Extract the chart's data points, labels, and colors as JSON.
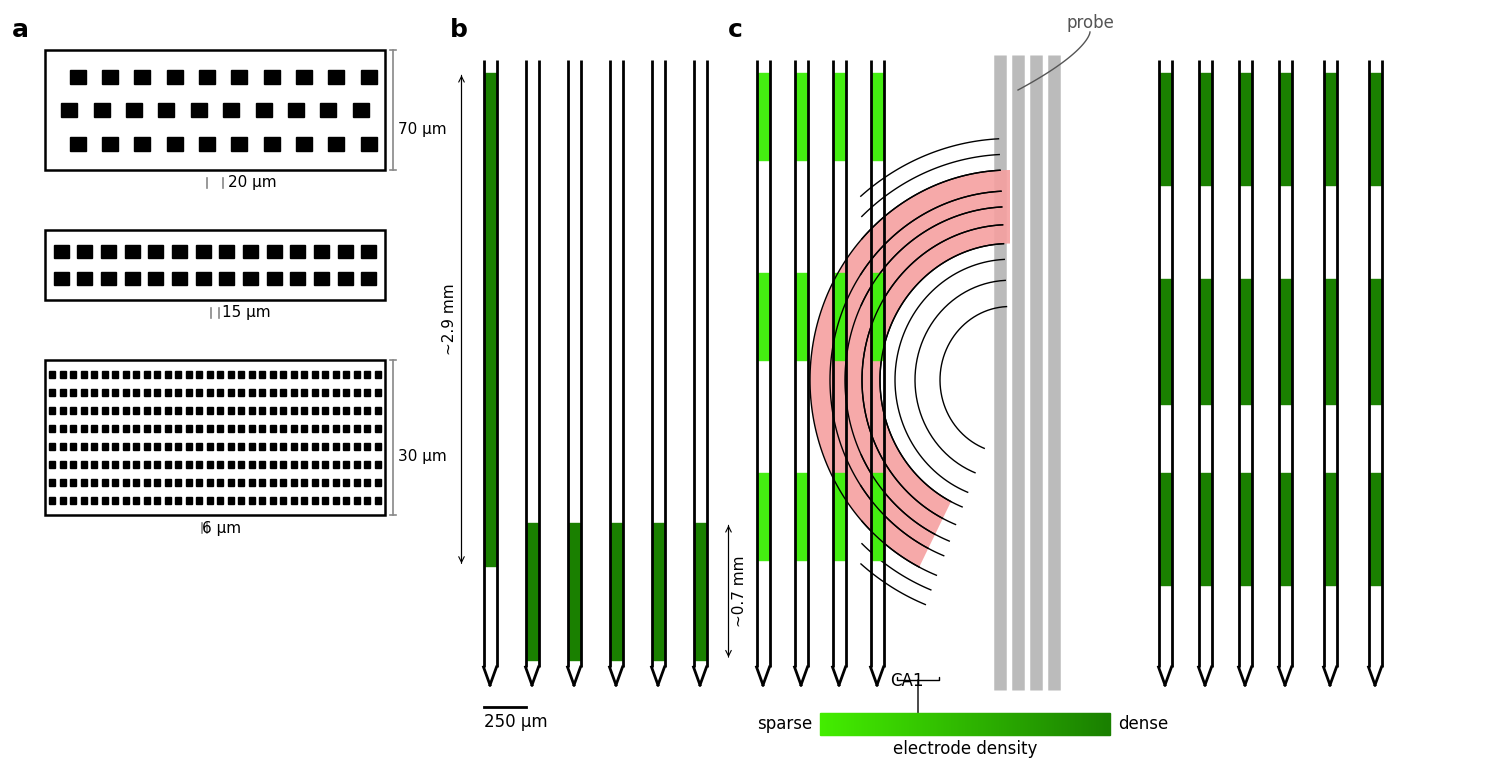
{
  "bg_color": "#ffffff",
  "black": "#000000",
  "green_light": "#44ee11",
  "green_dark": "#1a8000",
  "gray_probe": "#bbbbbb",
  "pink_ca1": "#f5a0a0",
  "panel_a": "a",
  "panel_b": "b",
  "panel_c": "c",
  "lbl_20um": "20 μm",
  "lbl_70um": "70 μm",
  "lbl_15um": "15 μm",
  "lbl_6um": "6 μm",
  "lbl_30um": "30 μm",
  "lbl_250um": "250 μm",
  "lbl_29mm": "~2.9 mm",
  "lbl_07mm": "~0.7 mm",
  "lbl_sparse": "sparse",
  "lbl_dense": "dense",
  "lbl_electrode_density": "electrode density",
  "lbl_probe": "probe",
  "lbl_ca1": "CA1",
  "dim_tick_color": "#888888"
}
